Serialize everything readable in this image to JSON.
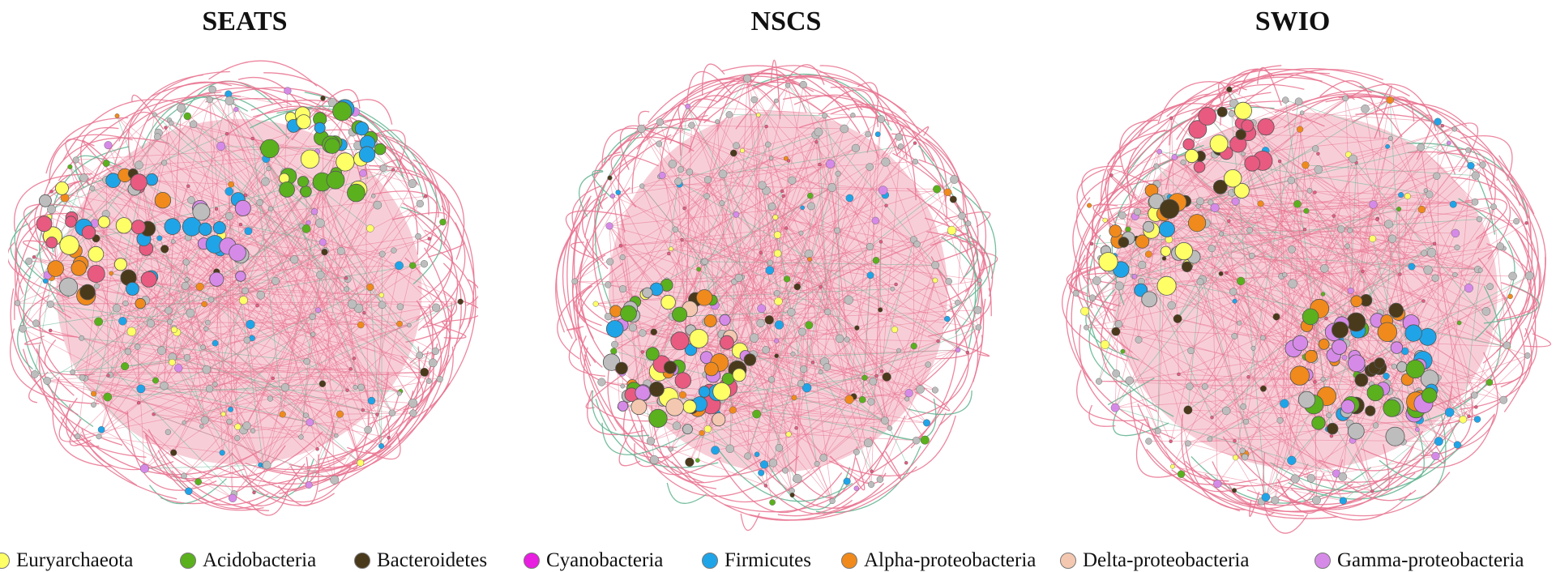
{
  "panels": [
    {
      "title": "SEATS"
    },
    {
      "title": "NSCS"
    },
    {
      "title": "SWIO"
    }
  ],
  "colors": {
    "positive_edge": "#e9728f",
    "negative_edge": "#5fb38f",
    "node_outline": "#555555",
    "unclassified_node": "#bdbdbd"
  },
  "legend": [
    {
      "label": "Euryarchaeota",
      "color": "#ffff66",
      "icon": "yellow-dot"
    },
    {
      "label": "Acidobacteria",
      "color": "#5bb01e",
      "icon": "green-dot"
    },
    {
      "label": "Bacteroidetes",
      "color": "#4a3a1c",
      "icon": "brown-dot"
    },
    {
      "label": "Cyanobacteria",
      "color": "#e81ee0",
      "icon": "magenta-dot"
    },
    {
      "label": "Firmicutes",
      "color": "#20a4e8",
      "icon": "blue-dot"
    },
    {
      "label": "Alpha-proteobacteria",
      "color": "#f08a1c",
      "icon": "orange-dot"
    },
    {
      "label": "Delta-proteobacteria",
      "color": "#f4c8b0",
      "icon": "peach-dot"
    },
    {
      "label": "Gamma-proteobacteria",
      "color": "#d68ae8",
      "icon": "lavender-dot"
    }
  ]
}
